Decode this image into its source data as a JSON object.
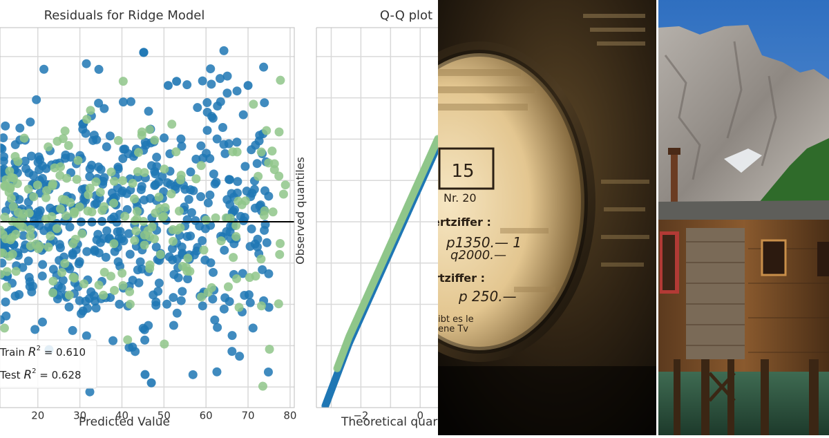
{
  "chart_data": [
    {
      "type": "scatter",
      "title": "Residuals for Ridge Model",
      "xlabel": "Predicted Value",
      "ylabel": "",
      "xlim": [
        11,
        81
      ],
      "ylim": [
        -45,
        47
      ],
      "xticks": [
        20,
        30,
        40,
        50,
        60,
        70,
        80
      ],
      "grid": true,
      "reference_line": {
        "y": 0,
        "color": "#000000"
      },
      "annotations": [
        {
          "prefix": "Train ",
          "stat": "R",
          "power": "2",
          "value": " = 0.610"
        },
        {
          "prefix": "Test ",
          "stat": "R",
          "power": "2",
          "value": " = 0.628"
        }
      ],
      "series": [
        {
          "color": "#1f77b4",
          "n_points": 560,
          "x_range": [
            11,
            75
          ],
          "residual_sd": 16
        },
        {
          "color": "#8fc58a",
          "n_points": 210,
          "x_range": [
            11,
            79
          ],
          "residual_sd": 15
        }
      ],
      "highlight_points": [
        {
          "x": 45.5,
          "y": -37
        },
        {
          "x": 47,
          "y": -39
        },
        {
          "x": 53,
          "y": 34
        },
        {
          "x": 51,
          "y": 33
        },
        {
          "x": 70,
          "y": 33
        }
      ]
    },
    {
      "type": "scatter",
      "title": "Q-Q plot",
      "xlabel": "Theoretical quar",
      "ylabel": "Observed quantiles",
      "xlim": [
        -3.5,
        0.6
      ],
      "ylim": [
        -45,
        47
      ],
      "xticks": [
        -2,
        0
      ],
      "xtick_labels": [
        "−2",
        "0"
      ],
      "grid": true,
      "series": [
        {
          "color": "#1f77b4",
          "kind": "quantiles",
          "range": [
            -3.2,
            0.6
          ]
        },
        {
          "color": "#8fc58a",
          "kind": "quantiles",
          "range": [
            -2.8,
            0.6
          ]
        }
      ]
    }
  ],
  "photos": {
    "magnifier": {
      "lens_text": [
        "15",
        "Nr. 20",
        "ertziffer :",
        "p1350.— 1",
        "q2000.—",
        "rtziffer :",
        "p  250.—",
        "ibt es  le",
        "ene Tv"
      ]
    }
  },
  "colors": {
    "blue": "#1f77b4",
    "green": "#8fc58a",
    "grid": "#d9d9d9"
  }
}
